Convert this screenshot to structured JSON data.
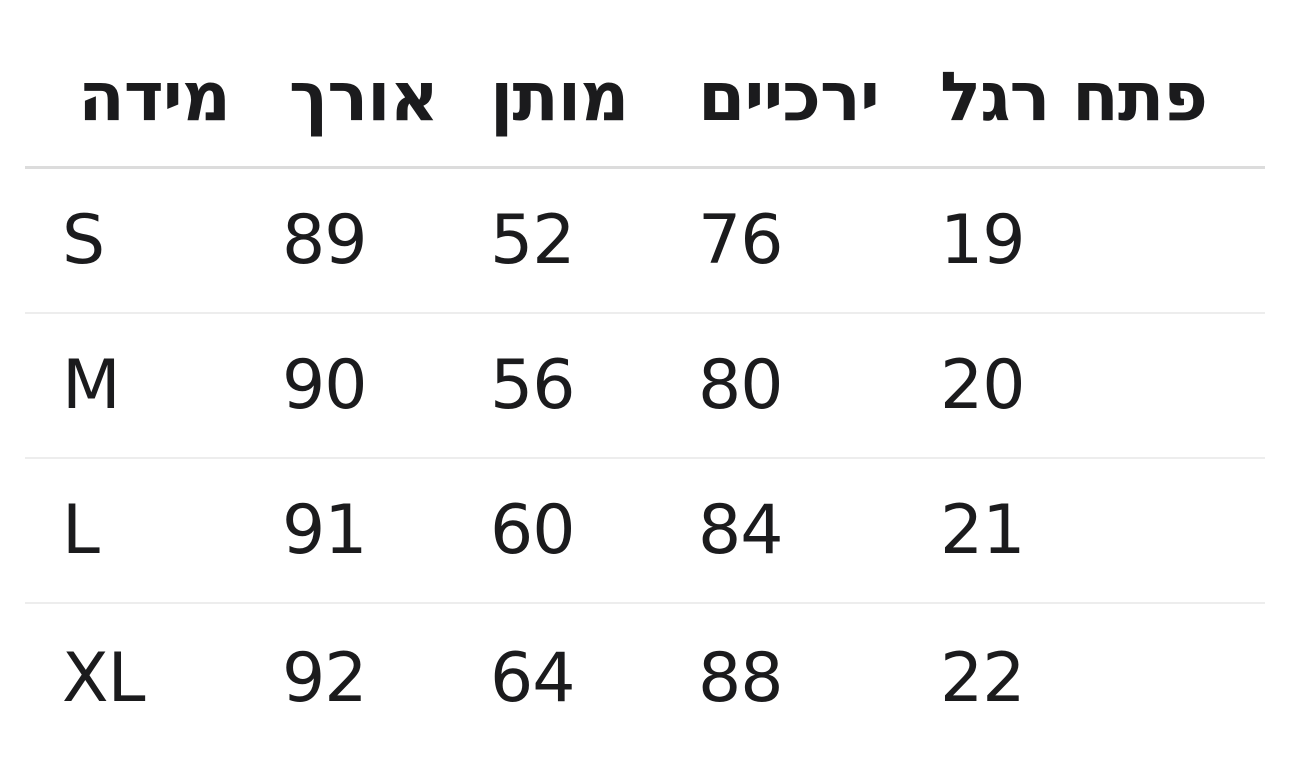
{
  "chart_data": {
    "type": "table",
    "title": "",
    "columns": [
      "מידה",
      "אורך",
      "מותן",
      "ירכיים",
      "פתח רגל"
    ],
    "rows": [
      [
        "S",
        "89",
        "52",
        "76",
        "19"
      ],
      [
        "M",
        "90",
        "56",
        "80",
        "20"
      ],
      [
        "L",
        "91",
        "60",
        "84",
        "21"
      ],
      [
        "XL",
        "92",
        "64",
        "88",
        "22"
      ]
    ],
    "layout": {
      "header_position": "top",
      "grid": "horizontal-dividers-only",
      "background": "#ffffff",
      "text_color": "#1b1b1d",
      "header_divider_color": "#dcdcdc",
      "row_divider_color": "#ededed"
    }
  }
}
